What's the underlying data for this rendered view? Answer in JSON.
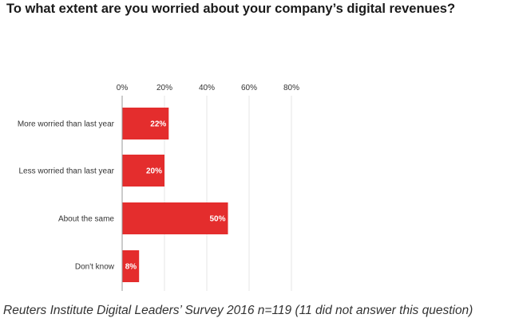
{
  "title": "To what extent are you worried about your company’s digital revenues?",
  "source": "Reuters Institute Digital Leaders’ Survey 2016 n=119 (11 did not answer this question)",
  "colors": {
    "bar": "#e42d2d",
    "grid": "#e6e6e6",
    "axis": "#9a9a9a"
  },
  "chart_data": {
    "type": "bar",
    "orientation": "horizontal",
    "title": "To what extent are you worried about your company’s digital revenues?",
    "categories": [
      "More worried than last year",
      "Less worried than last year",
      "About the same",
      "Don't know"
    ],
    "values": [
      22,
      20,
      50,
      8
    ],
    "data_labels": [
      "22%",
      "20%",
      "50%",
      "8%"
    ],
    "xlim": [
      0,
      80
    ],
    "xticks": [
      0,
      20,
      40,
      60,
      80
    ],
    "xtick_labels": [
      "0%",
      "20%",
      "40%",
      "60%",
      "80%"
    ],
    "xlabel": "",
    "ylabel": "",
    "grid": true,
    "axis_position": "top"
  }
}
